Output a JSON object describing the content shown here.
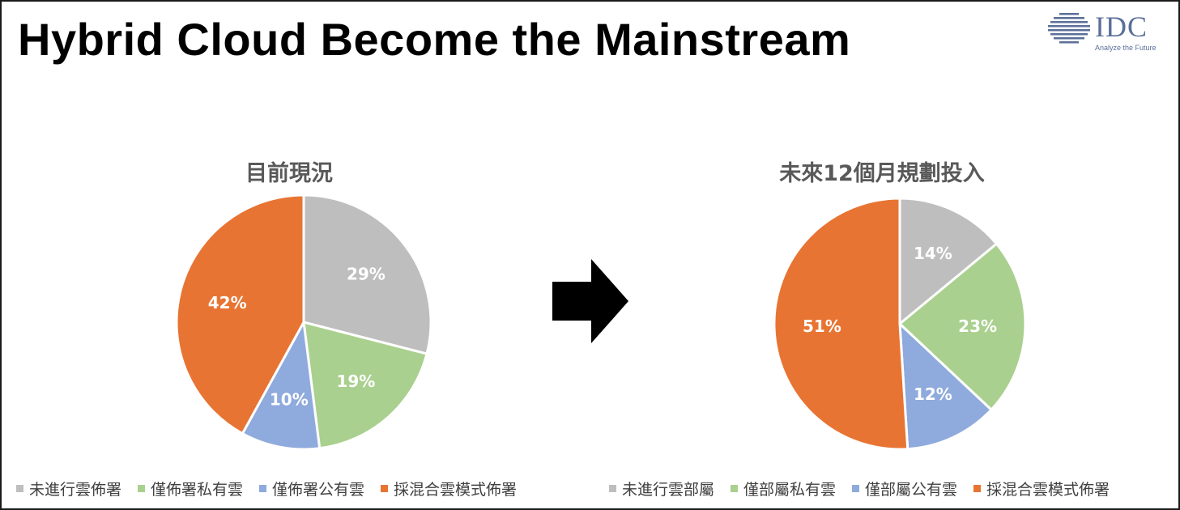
{
  "slide": {
    "title": "Hybrid Cloud Become the Mainstream",
    "logo": {
      "text": "IDC",
      "tagline": "Analyze the Future",
      "icon": "globe-lines-icon"
    },
    "arrow_icon": "right-arrow-icon"
  },
  "colors": {
    "gray": "#bfbebe",
    "green": "#a9d08e",
    "blue": "#8faadc",
    "orange": "#e87433"
  },
  "chart_data": [
    {
      "type": "pie",
      "title": "目前現況",
      "slices": [
        {
          "label": "未進行雲佈署",
          "value": 29,
          "text": "29%",
          "color": "#bfbebe"
        },
        {
          "label": "僅佈署私有雲",
          "value": 19,
          "text": "19%",
          "color": "#a9d08e"
        },
        {
          "label": "僅佈署公有雲",
          "value": 10,
          "text": "10%",
          "color": "#8faadc"
        },
        {
          "label": "採混合雲模式佈署",
          "value": 42,
          "text": "42%",
          "color": "#e87433"
        }
      ]
    },
    {
      "type": "pie",
      "title": "未來12個月規劃投入",
      "slices": [
        {
          "label": "未進行雲部屬",
          "value": 14,
          "text": "14%",
          "color": "#bfbebe"
        },
        {
          "label": "僅部屬私有雲",
          "value": 23,
          "text": "23%",
          "color": "#a9d08e"
        },
        {
          "label": "僅部屬公有雲",
          "value": 12,
          "text": "12%",
          "color": "#8faadc"
        },
        {
          "label": "採混合雲模式佈署",
          "value": 51,
          "text": "51%",
          "color": "#e87433"
        }
      ]
    }
  ]
}
